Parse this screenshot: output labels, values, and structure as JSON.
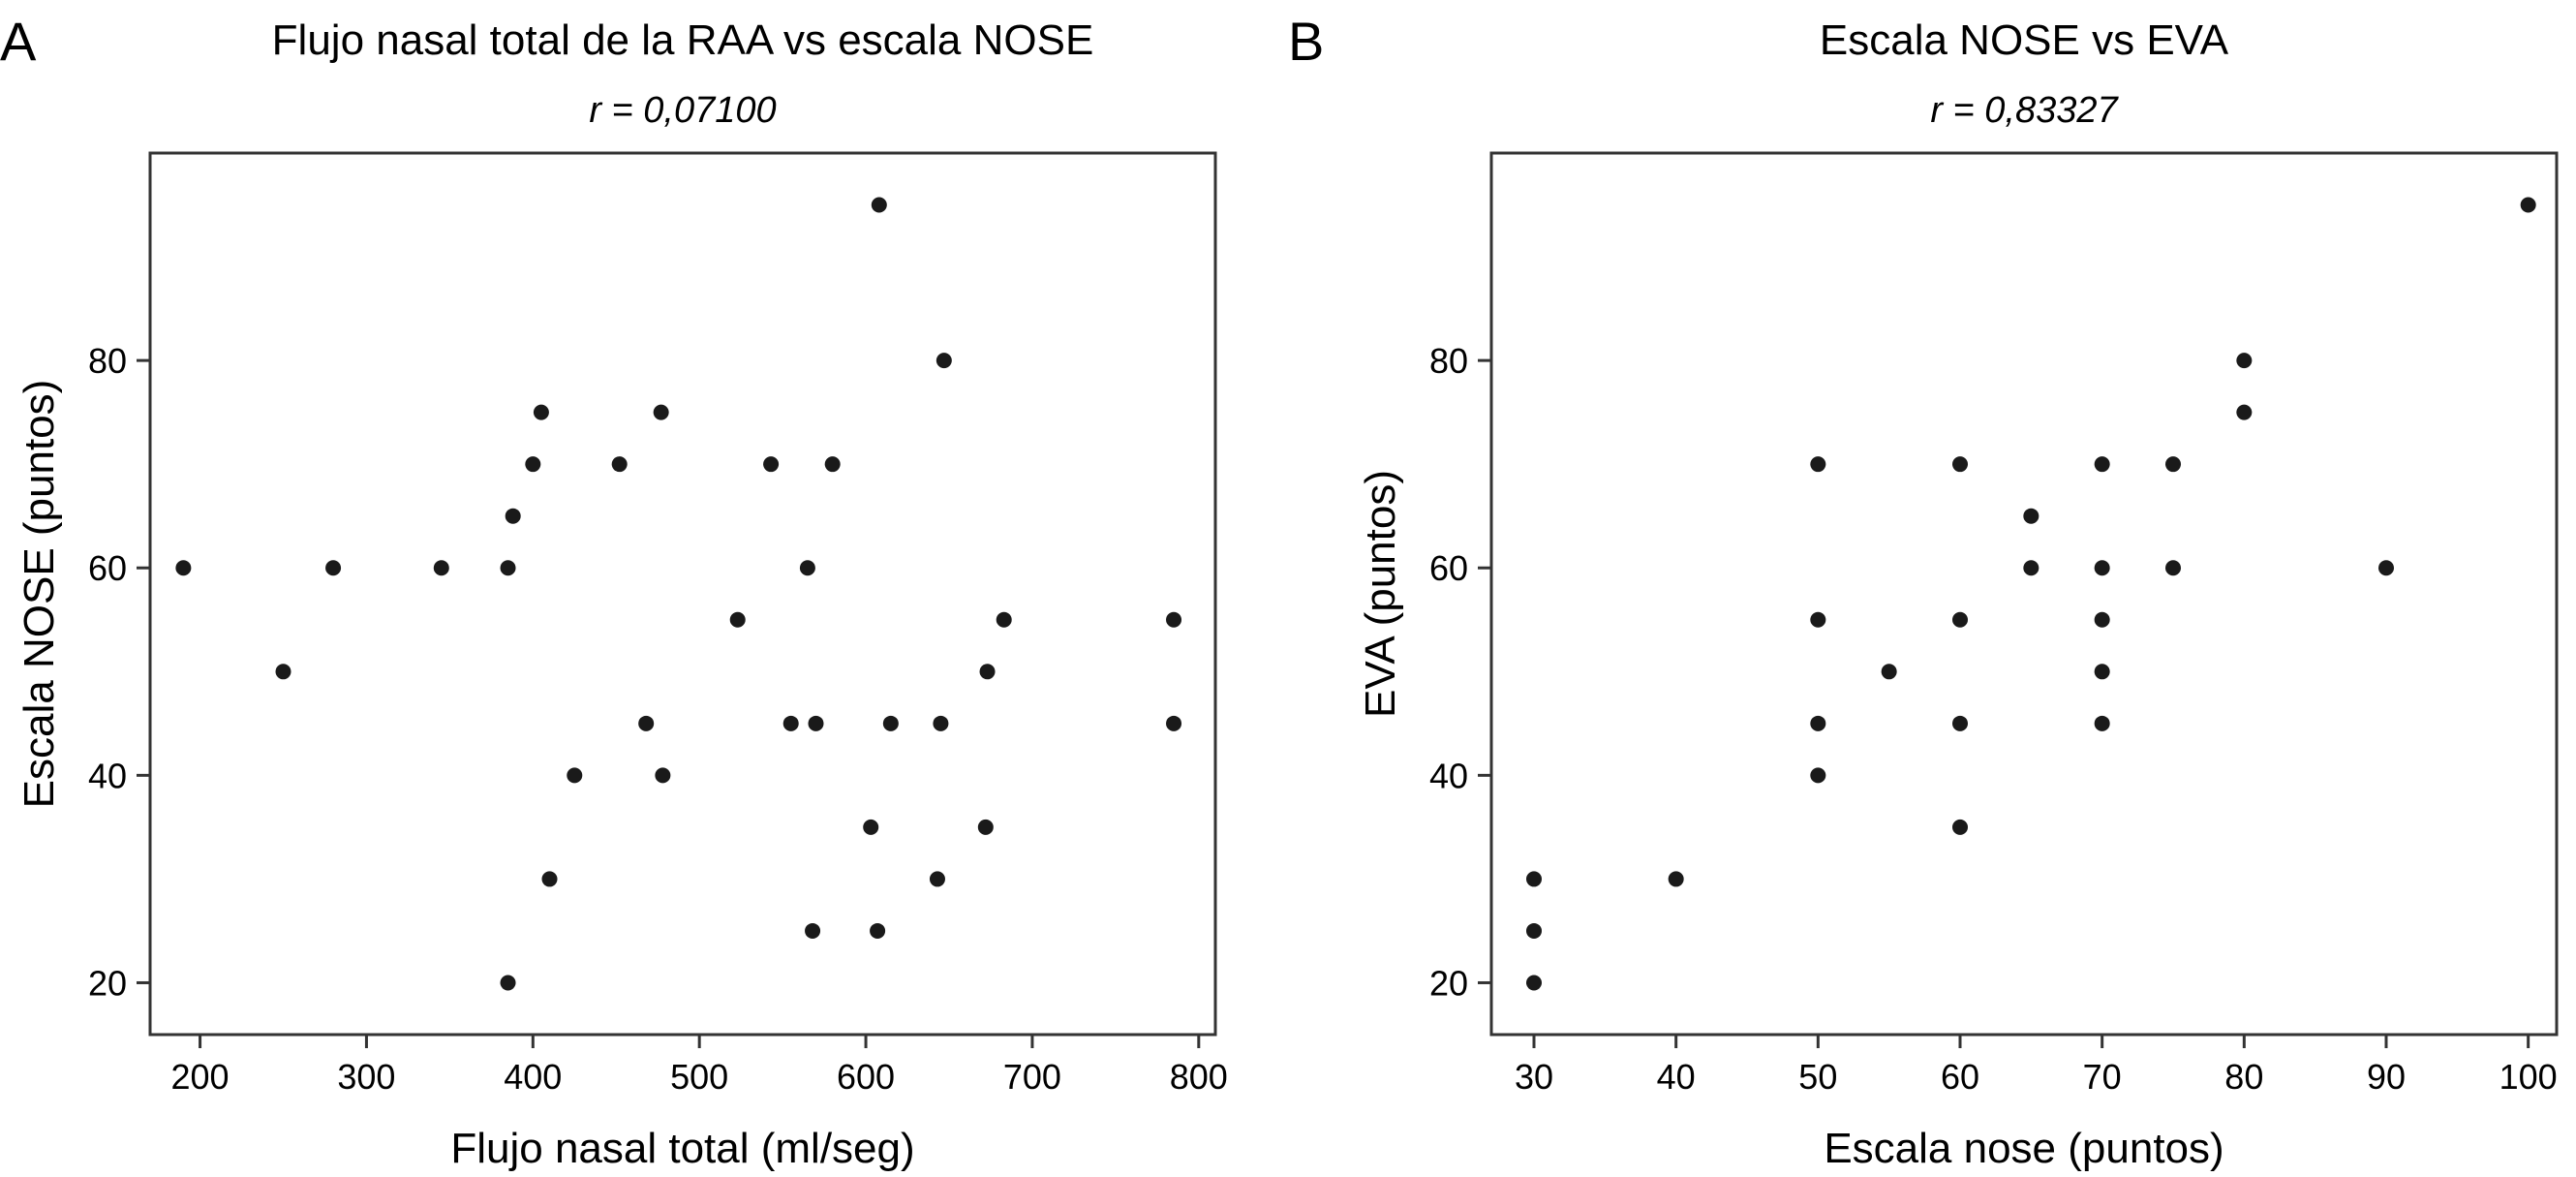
{
  "chart_data": [
    {
      "type": "scatter",
      "panel_label": "A",
      "title": "Flujo nasal total de la RAA vs escala NOSE",
      "subtitle": "r = 0,07100",
      "xlabel": "Flujo nasal total (ml/seg)",
      "ylabel": "Escala NOSE (puntos)",
      "xlim": [
        170,
        810
      ],
      "ylim": [
        15,
        100
      ],
      "xticks": [
        200,
        300,
        400,
        500,
        600,
        700,
        800
      ],
      "yticks": [
        20,
        40,
        60,
        80
      ],
      "grid": false,
      "points": [
        {
          "x": 190,
          "y": 60
        },
        {
          "x": 250,
          "y": 50
        },
        {
          "x": 280,
          "y": 60
        },
        {
          "x": 345,
          "y": 60
        },
        {
          "x": 385,
          "y": 60
        },
        {
          "x": 388,
          "y": 65
        },
        {
          "x": 385,
          "y": 20
        },
        {
          "x": 400,
          "y": 70
        },
        {
          "x": 405,
          "y": 75
        },
        {
          "x": 410,
          "y": 30
        },
        {
          "x": 425,
          "y": 40
        },
        {
          "x": 452,
          "y": 70
        },
        {
          "x": 468,
          "y": 45
        },
        {
          "x": 477,
          "y": 75
        },
        {
          "x": 478,
          "y": 40
        },
        {
          "x": 523,
          "y": 55
        },
        {
          "x": 543,
          "y": 70
        },
        {
          "x": 555,
          "y": 45
        },
        {
          "x": 565,
          "y": 60
        },
        {
          "x": 570,
          "y": 45
        },
        {
          "x": 568,
          "y": 25
        },
        {
          "x": 580,
          "y": 70
        },
        {
          "x": 603,
          "y": 35
        },
        {
          "x": 607,
          "y": 25
        },
        {
          "x": 608,
          "y": 95
        },
        {
          "x": 615,
          "y": 45
        },
        {
          "x": 643,
          "y": 30
        },
        {
          "x": 645,
          "y": 45
        },
        {
          "x": 647,
          "y": 80
        },
        {
          "x": 672,
          "y": 35
        },
        {
          "x": 673,
          "y": 50
        },
        {
          "x": 683,
          "y": 55
        },
        {
          "x": 785,
          "y": 55
        },
        {
          "x": 785,
          "y": 45
        }
      ]
    },
    {
      "type": "scatter",
      "panel_label": "B",
      "title": "Escala NOSE vs EVA",
      "subtitle": "r = 0,83327",
      "xlabel": "Escala nose (puntos)",
      "ylabel": "EVA (puntos)",
      "xlim": [
        27,
        102
      ],
      "ylim": [
        15,
        100
      ],
      "xticks": [
        30,
        40,
        50,
        60,
        70,
        80,
        90,
        100
      ],
      "yticks": [
        20,
        40,
        60,
        80
      ],
      "grid": false,
      "points": [
        {
          "x": 30,
          "y": 30
        },
        {
          "x": 30,
          "y": 25
        },
        {
          "x": 30,
          "y": 20
        },
        {
          "x": 40,
          "y": 30
        },
        {
          "x": 50,
          "y": 70
        },
        {
          "x": 50,
          "y": 55
        },
        {
          "x": 50,
          "y": 45
        },
        {
          "x": 50,
          "y": 40
        },
        {
          "x": 55,
          "y": 50
        },
        {
          "x": 60,
          "y": 70
        },
        {
          "x": 60,
          "y": 55
        },
        {
          "x": 60,
          "y": 45
        },
        {
          "x": 60,
          "y": 35
        },
        {
          "x": 65,
          "y": 65
        },
        {
          "x": 65,
          "y": 60
        },
        {
          "x": 70,
          "y": 70
        },
        {
          "x": 70,
          "y": 60
        },
        {
          "x": 70,
          "y": 55
        },
        {
          "x": 70,
          "y": 50
        },
        {
          "x": 70,
          "y": 45
        },
        {
          "x": 75,
          "y": 70
        },
        {
          "x": 75,
          "y": 60
        },
        {
          "x": 80,
          "y": 80
        },
        {
          "x": 80,
          "y": 75
        },
        {
          "x": 90,
          "y": 60
        },
        {
          "x": 100,
          "y": 95
        }
      ]
    }
  ],
  "colors": {
    "point": "#1a1a1a",
    "frame": "#333333"
  }
}
